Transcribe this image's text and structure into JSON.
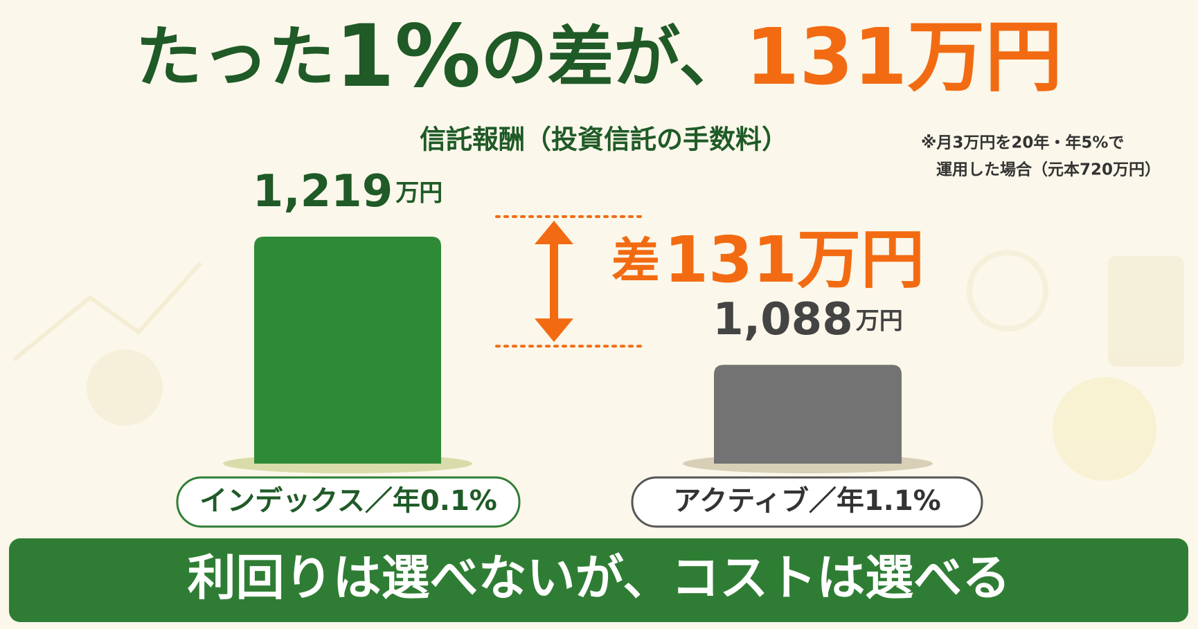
{
  "chart_data": {
    "type": "bar",
    "title": [
      "たった",
      "1%",
      "の差が、",
      "131万円"
    ],
    "subtitle": "信託報酬（投資信託の手数料）",
    "note": [
      "※月3万円を20年・年5%で",
      "運用した場合（元本720万円）"
    ],
    "categories": [
      "インデックス／年0.1%",
      "アクティブ／年1.1%"
    ],
    "values": [
      1219,
      1088
    ],
    "value_labels": [
      "1,219",
      "1,088"
    ],
    "unit": "万円",
    "colors": [
      "#2f8a37",
      "#737373"
    ],
    "label_colors": [
      "#1f5a27",
      "#444444"
    ],
    "ylim": [
      987,
      1219
    ],
    "difference": {
      "prefix": "差",
      "label": "131万円"
    },
    "banner": "利回りは選べないが、コストは選べる"
  }
}
